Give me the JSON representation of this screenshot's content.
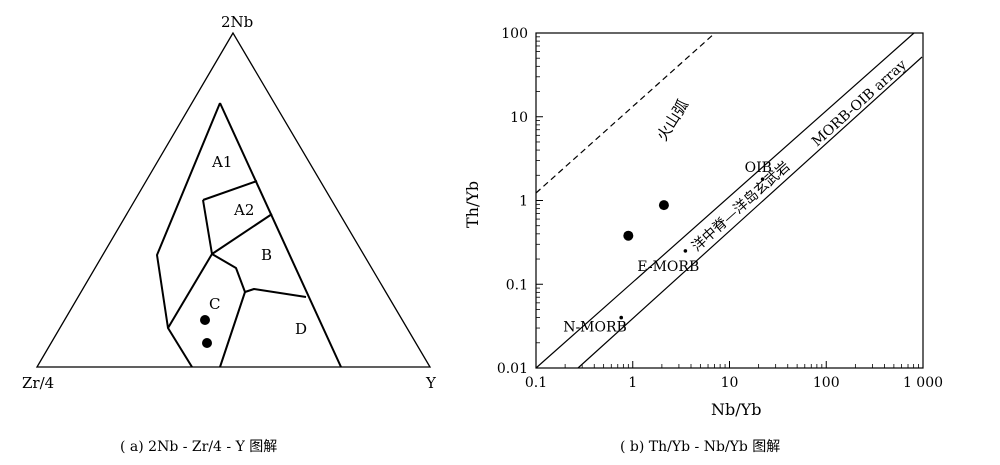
{
  "chart_data": [
    {
      "type": "ternary",
      "apex_top": "2Nb",
      "apex_left": "Zr/4",
      "apex_right": "Y",
      "fields": [
        "A1",
        "A2",
        "B",
        "C",
        "D"
      ],
      "points_in_field": "C",
      "point_count": 2,
      "caption": "( a) 2Nb - Zr/4 - Y 图解"
    },
    {
      "type": "scatter",
      "xscale": "log",
      "yscale": "log",
      "xlabel": "Nb/Yb",
      "ylabel": "Th/Yb",
      "xlim": [
        0.1,
        1000
      ],
      "ylim": [
        0.01,
        100
      ],
      "xticks": [
        "0.1",
        "1",
        "10",
        "100",
        "1 000"
      ],
      "yticks": [
        "0.01",
        "0.1",
        "1",
        "10",
        "100"
      ],
      "points": [
        {
          "x": 0.9,
          "y": 0.38
        },
        {
          "x": 2.1,
          "y": 0.88
        }
      ],
      "references": [
        {
          "label": "N-MORB",
          "x": 0.76,
          "y": 0.04
        },
        {
          "label": "E-MORB",
          "x": 3.5,
          "y": 0.25
        },
        {
          "label": "OIB",
          "x": 22,
          "y": 1.8
        }
      ],
      "annotations": {
        "arc_label": "火山弧",
        "array_label": "MORB-OIB  array",
        "array_label_cn": "洋中脊—洋岛玄武岩"
      },
      "caption": "( b) Th/Yb - Nb/Yb 图解"
    }
  ]
}
